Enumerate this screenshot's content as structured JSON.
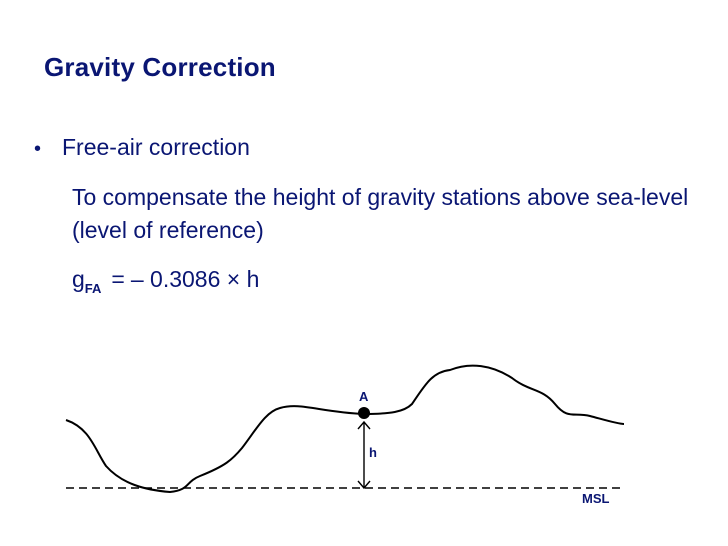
{
  "slide": {
    "title": "Gravity Correction",
    "bullet_marker": "•",
    "bullet": "Free-air correction",
    "description": "To compensate the height of gravity stations above sea-level (level of reference)",
    "formula": {
      "main": "g",
      "subscript": "FA",
      "equals": "=",
      "rhs": "– 0.3086 × h"
    }
  },
  "diagram": {
    "station_label": "A",
    "height_label": "h",
    "sea_level_label": "MSL"
  },
  "colors": {
    "text": "#0a1673",
    "line": "#000000"
  }
}
